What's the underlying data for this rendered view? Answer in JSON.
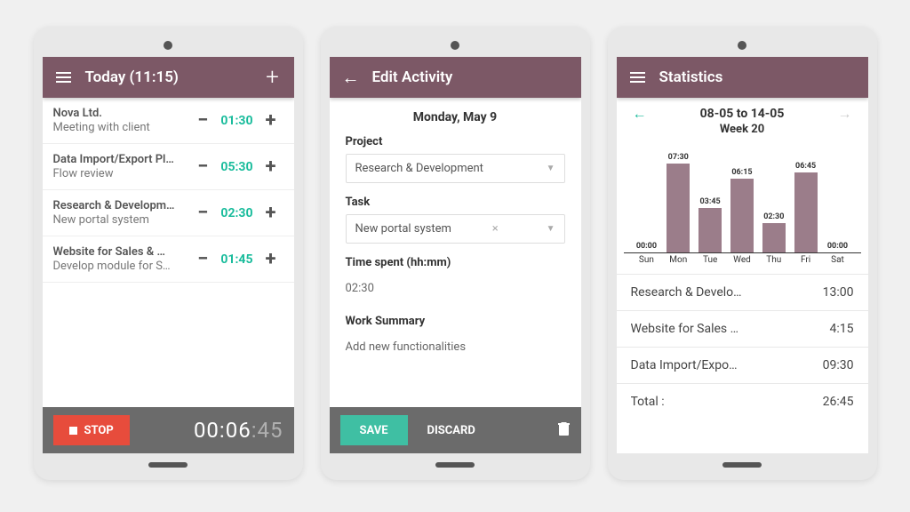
{
  "colors": {
    "header_bg": "#7c5866",
    "accent_teal": "#1abc9c",
    "stop_red": "#e74c3c",
    "save_green": "#3fbfa3",
    "bar_purple": "#9b7d8a",
    "footer_grey": "#6b6b6b"
  },
  "screen1": {
    "title": "Today (11:15)",
    "entries": [
      {
        "title": "Nova Ltd.",
        "subtitle": "Meeting with client",
        "time": "01:30"
      },
      {
        "title": "Data Import/Export Pl…",
        "subtitle": "Flow review",
        "time": "05:30"
      },
      {
        "title": "Research & Developm…",
        "subtitle": "New portal system",
        "time": "02:30"
      },
      {
        "title": "Website for Sales & …",
        "subtitle": "Develop module for S…",
        "time": "01:45"
      }
    ],
    "stop_label": "STOP",
    "elapsed_main": "00:06",
    "elapsed_sec": ":45"
  },
  "screen2": {
    "title": "Edit Activity",
    "date": "Monday, May 9",
    "labels": {
      "project": "Project",
      "task": "Task",
      "time": "Time spent (hh:mm)",
      "summary": "Work Summary"
    },
    "project_value": "Research & Development",
    "task_value": "New portal system",
    "time_value": "02:30",
    "summary_value": "Add new functionalities",
    "save_label": "SAVE",
    "discard_label": "DISCARD"
  },
  "screen3": {
    "title": "Statistics",
    "date_range": "08-05 to 14-05",
    "week": "Week 20",
    "chart": {
      "type": "bar",
      "bar_color": "#9b7d8a",
      "max_minutes": 450,
      "days": [
        {
          "day": "Sun",
          "label": "00:00",
          "minutes": 0
        },
        {
          "day": "Mon",
          "label": "07:30",
          "minutes": 450
        },
        {
          "day": "Tue",
          "label": "03:45",
          "minutes": 225
        },
        {
          "day": "Wed",
          "label": "06:15",
          "minutes": 375
        },
        {
          "day": "Thu",
          "label": "02:30",
          "minutes": 150
        },
        {
          "day": "Fri",
          "label": "06:45",
          "minutes": 405
        },
        {
          "day": "Sat",
          "label": "00:00",
          "minutes": 0
        }
      ]
    },
    "summary": [
      {
        "name": "Research & Develo…",
        "value": "13:00"
      },
      {
        "name": "Website for Sales …",
        "value": "4:15"
      },
      {
        "name": "Data Import/Expo…",
        "value": "09:30"
      },
      {
        "name": "Total :",
        "value": "26:45"
      }
    ]
  }
}
